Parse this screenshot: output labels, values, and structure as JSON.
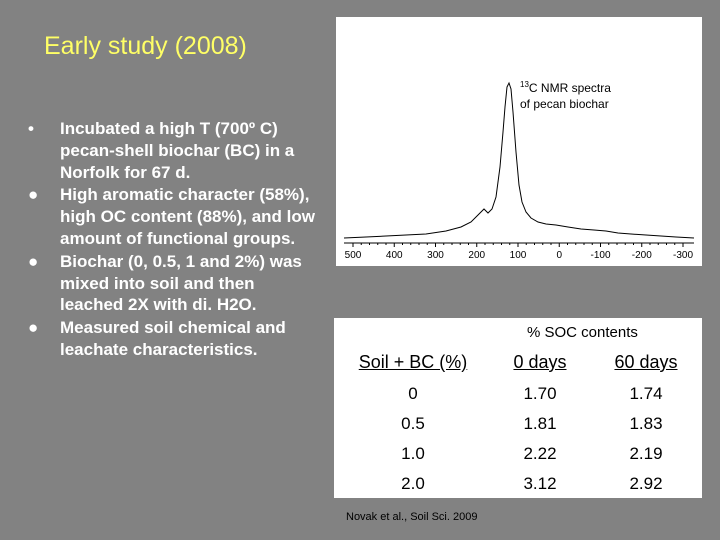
{
  "title": "Early study (2008)",
  "bullets": [
    {
      "marker": "•",
      "text": "Incubated a high T (700º C) pecan-shell biochar (BC) in a Norfolk for 67 d."
    },
    {
      "marker": "●",
      "text": "High aromatic character (58%), high OC content (88%), and low amount of functional groups."
    },
    {
      "marker": "●",
      "text": "Biochar (0, 0.5, 1 and 2%) was  mixed into soil and then leached 2X with di. H2O."
    },
    {
      "marker": "●",
      "text": "Measured soil chemical and leachate characteristics."
    }
  ],
  "nmr": {
    "caption_sup": "13",
    "caption_line1": "C NMR spectra",
    "caption_line2": "of pecan biochar",
    "axis_ticks": [
      "500",
      "400",
      "300",
      "200",
      "100",
      "0",
      "-100",
      "-200",
      "-300"
    ]
  },
  "table": {
    "group_header": "% SOC contents",
    "headers": [
      "Soil + BC (%)",
      "0 days",
      "60 days"
    ],
    "rows": [
      [
        "0",
        "1.70",
        "1.74"
      ],
      [
        "0.5",
        "1.81",
        "1.83"
      ],
      [
        "1.0",
        "2.22",
        "2.19"
      ],
      [
        "2.0",
        "3.12",
        "2.92"
      ]
    ]
  },
  "citation": "Novak et al., Soil Sci. 2009"
}
